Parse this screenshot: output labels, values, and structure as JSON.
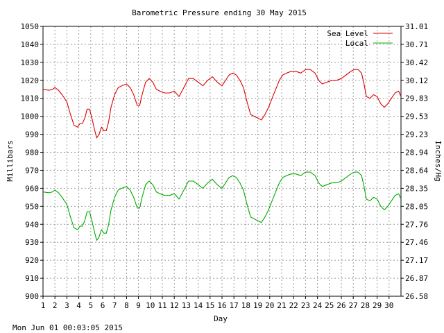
{
  "chart_data": {
    "type": "line",
    "title": "Barometric Pressure ending 30 May 2015",
    "xlabel": "Day",
    "ylabel_left": "Millibars",
    "ylabel_right": "Inches/Hg",
    "xlim": [
      1,
      31
    ],
    "ylim": [
      900,
      1050
    ],
    "x_ticks": [
      "1",
      "2",
      "3",
      "4",
      "5",
      "6",
      "7",
      "8",
      "9",
      "10",
      "11",
      "12",
      "13",
      "14",
      "15",
      "16",
      "17",
      "18",
      "19",
      "20",
      "21",
      "22",
      "23",
      "24",
      "25",
      "26",
      "27",
      "28",
      "29",
      "30"
    ],
    "y_ticks_left": [
      "900",
      "910",
      "920",
      "930",
      "940",
      "950",
      "960",
      "970",
      "980",
      "990",
      "1000",
      "1010",
      "1020",
      "1030",
      "1040",
      "1050"
    ],
    "y_ticks_right": [
      "26.58",
      "26.87",
      "27.17",
      "27.46",
      "27.76",
      "28.05",
      "28.35",
      "28.64",
      "28.94",
      "29.23",
      "29.53",
      "29.83",
      "30.12",
      "30.42",
      "30.71",
      "31.01"
    ],
    "grid": true,
    "legend": "top-right",
    "footer": "Mon Jun 01 00:03:05 2015",
    "series": [
      {
        "name": "Sea Level",
        "color": "#dd0000",
        "x": [
          1,
          1.5,
          1.8,
          2,
          2.3,
          2.6,
          3,
          3.3,
          3.6,
          3.9,
          4.1,
          4.3,
          4.5,
          4.7,
          4.9,
          5.1,
          5.3,
          5.5,
          5.7,
          5.9,
          6.1,
          6.3,
          6.5,
          6.7,
          7,
          7.3,
          7.6,
          8,
          8.3,
          8.6,
          8.9,
          9.1,
          9.3,
          9.6,
          9.9,
          10.2,
          10.5,
          10.8,
          11.2,
          11.6,
          12,
          12.4,
          12.8,
          13.2,
          13.6,
          14,
          14.4,
          14.8,
          15.2,
          15.6,
          16,
          16.3,
          16.6,
          16.9,
          17.2,
          17.5,
          17.8,
          18.1,
          18.4,
          18.7,
          19,
          19.3,
          19.6,
          19.9,
          20.2,
          20.5,
          20.8,
          21.1,
          21.4,
          21.8,
          22.2,
          22.6,
          23,
          23.4,
          23.8,
          24.1,
          24.4,
          24.8,
          25.2,
          25.6,
          26,
          26.4,
          26.8,
          27.1,
          27.4,
          27.7,
          27.9,
          28.1,
          28.4,
          28.7,
          29,
          29.3,
          29.6,
          29.9,
          30.2,
          30.5,
          30.8,
          31
        ],
        "values": [
          1015,
          1014.5,
          1015,
          1016,
          1014.5,
          1012,
          1008,
          1001,
          995,
          994,
          996,
          996,
          999,
          1004,
          1004,
          999,
          993,
          988,
          990,
          994,
          992,
          992,
          997,
          1005,
          1012,
          1016,
          1017,
          1018,
          1016,
          1012,
          1006,
          1006,
          1012,
          1019,
          1021,
          1019,
          1015,
          1014,
          1013,
          1013,
          1014,
          1011,
          1016,
          1021,
          1021,
          1019,
          1017,
          1020,
          1022,
          1019,
          1017,
          1020,
          1023,
          1024,
          1023,
          1020,
          1016,
          1008,
          1001,
          1000,
          999,
          998,
          1001,
          1005,
          1010,
          1015,
          1020,
          1023,
          1024,
          1025,
          1025,
          1024,
          1026,
          1026,
          1024,
          1020,
          1018,
          1019,
          1020,
          1020,
          1021,
          1023,
          1025,
          1026,
          1026,
          1024,
          1018,
          1011,
          1010,
          1012,
          1011,
          1007,
          1005,
          1007,
          1010,
          1013,
          1014,
          1011
        ]
      },
      {
        "name": "Local",
        "color": "#00aa00",
        "x": [
          1,
          1.5,
          1.8,
          2,
          2.3,
          2.6,
          3,
          3.3,
          3.6,
          3.9,
          4.1,
          4.3,
          4.5,
          4.7,
          4.9,
          5.1,
          5.3,
          5.5,
          5.7,
          5.9,
          6.1,
          6.3,
          6.5,
          6.7,
          7,
          7.3,
          7.6,
          8,
          8.3,
          8.6,
          8.9,
          9.1,
          9.3,
          9.6,
          9.9,
          10.2,
          10.5,
          10.8,
          11.2,
          11.6,
          12,
          12.4,
          12.8,
          13.2,
          13.6,
          14,
          14.4,
          14.8,
          15.2,
          15.6,
          16,
          16.3,
          16.6,
          16.9,
          17.2,
          17.5,
          17.8,
          18.1,
          18.4,
          18.7,
          19,
          19.3,
          19.6,
          19.9,
          20.2,
          20.5,
          20.8,
          21.1,
          21.4,
          21.8,
          22.2,
          22.6,
          23,
          23.4,
          23.8,
          24.1,
          24.4,
          24.8,
          25.2,
          25.6,
          26,
          26.4,
          26.8,
          27.1,
          27.4,
          27.7,
          27.9,
          28.1,
          28.4,
          28.7,
          29,
          29.3,
          29.6,
          29.9,
          30.2,
          30.5,
          30.8,
          31
        ],
        "values": [
          958,
          957.5,
          958,
          959,
          957.5,
          955,
          951,
          944,
          938,
          937,
          939,
          939,
          942,
          947,
          947,
          942,
          936,
          931,
          933,
          937,
          935,
          935,
          940,
          948,
          955,
          959,
          960,
          961,
          959,
          955,
          949,
          949,
          955,
          962,
          964,
          962,
          958,
          957,
          956,
          956,
          957,
          954,
          959,
          964,
          964,
          962,
          960,
          963,
          965,
          962,
          960,
          963,
          966,
          967,
          966,
          963,
          959,
          951,
          944,
          943,
          942,
          941,
          944,
          948,
          953,
          958,
          963,
          966,
          967,
          968,
          968,
          967,
          969,
          969,
          967,
          963,
          961,
          962,
          963,
          963,
          964,
          966,
          968,
          969,
          969,
          967,
          961,
          954,
          953,
          955,
          954,
          950,
          948,
          950,
          953,
          956,
          957,
          954
        ]
      }
    ]
  }
}
